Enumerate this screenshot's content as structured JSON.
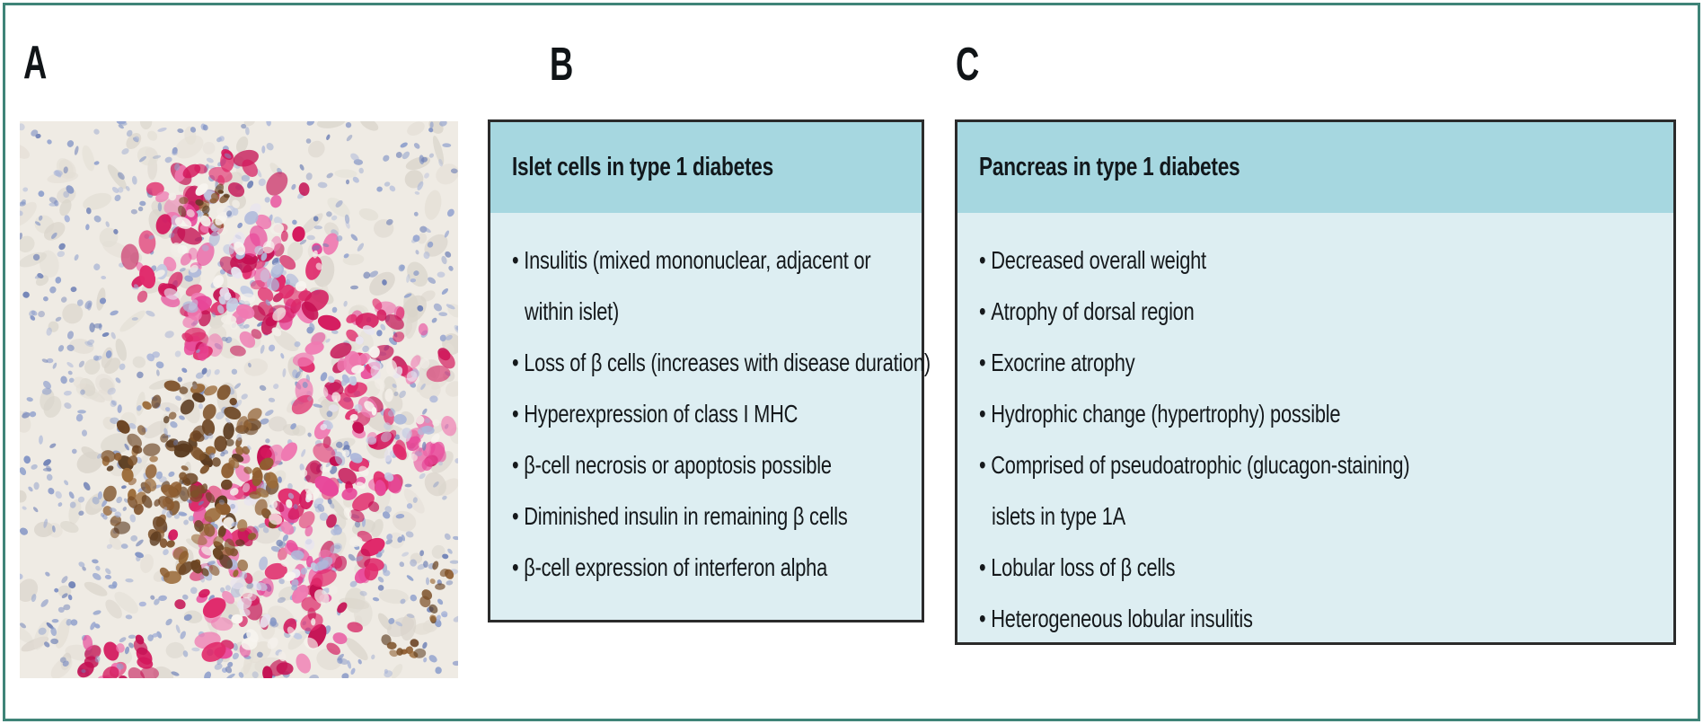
{
  "figure": {
    "panel_a": {
      "label": "A",
      "image": "histology-micrograph"
    },
    "panel_b": {
      "label": "B",
      "title": "Islet cells in type 1 diabetes",
      "bullets": [
        {
          "lines": [
            "Insulitis (mixed mononuclear, adjacent or",
            "within islet)"
          ]
        },
        {
          "lines": [
            "Loss of β cells (increases with disease duration)"
          ]
        },
        {
          "lines": [
            "Hyperexpression of class I MHC"
          ]
        },
        {
          "lines": [
            "β-cell necrosis or apoptosis possible"
          ]
        },
        {
          "lines": [
            "Diminished insulin in remaining β cells"
          ]
        },
        {
          "lines": [
            "β-cell expression of interferon alpha"
          ]
        }
      ]
    },
    "panel_c": {
      "label": "C",
      "title": "Pancreas in type 1 diabetes",
      "bullets": [
        {
          "lines": [
            "Decreased overall weight"
          ]
        },
        {
          "lines": [
            "Atrophy of dorsal region"
          ]
        },
        {
          "lines": [
            "Exocrine atrophy"
          ]
        },
        {
          "lines": [
            "Hydrophic change (hypertrophy) possible"
          ]
        },
        {
          "lines": [
            "Comprised of pseudoatrophic (glucagon-staining)",
            "islets in type 1A"
          ]
        },
        {
          "lines": [
            "Lobular loss of β cells"
          ]
        },
        {
          "lines": [
            "Heterogeneous lobular insulitis"
          ]
        }
      ]
    },
    "colors": {
      "box_header_bg": "#a6d7e0",
      "box_body_bg": "#ddeef2",
      "box_border": "#2b2b2b",
      "figure_border": "#3f8478",
      "text": "#15191c",
      "stain_red": "#d4175c",
      "stain_brown": "#7d5129",
      "stain_blue_nuclei": "#8fa0cc"
    }
  }
}
